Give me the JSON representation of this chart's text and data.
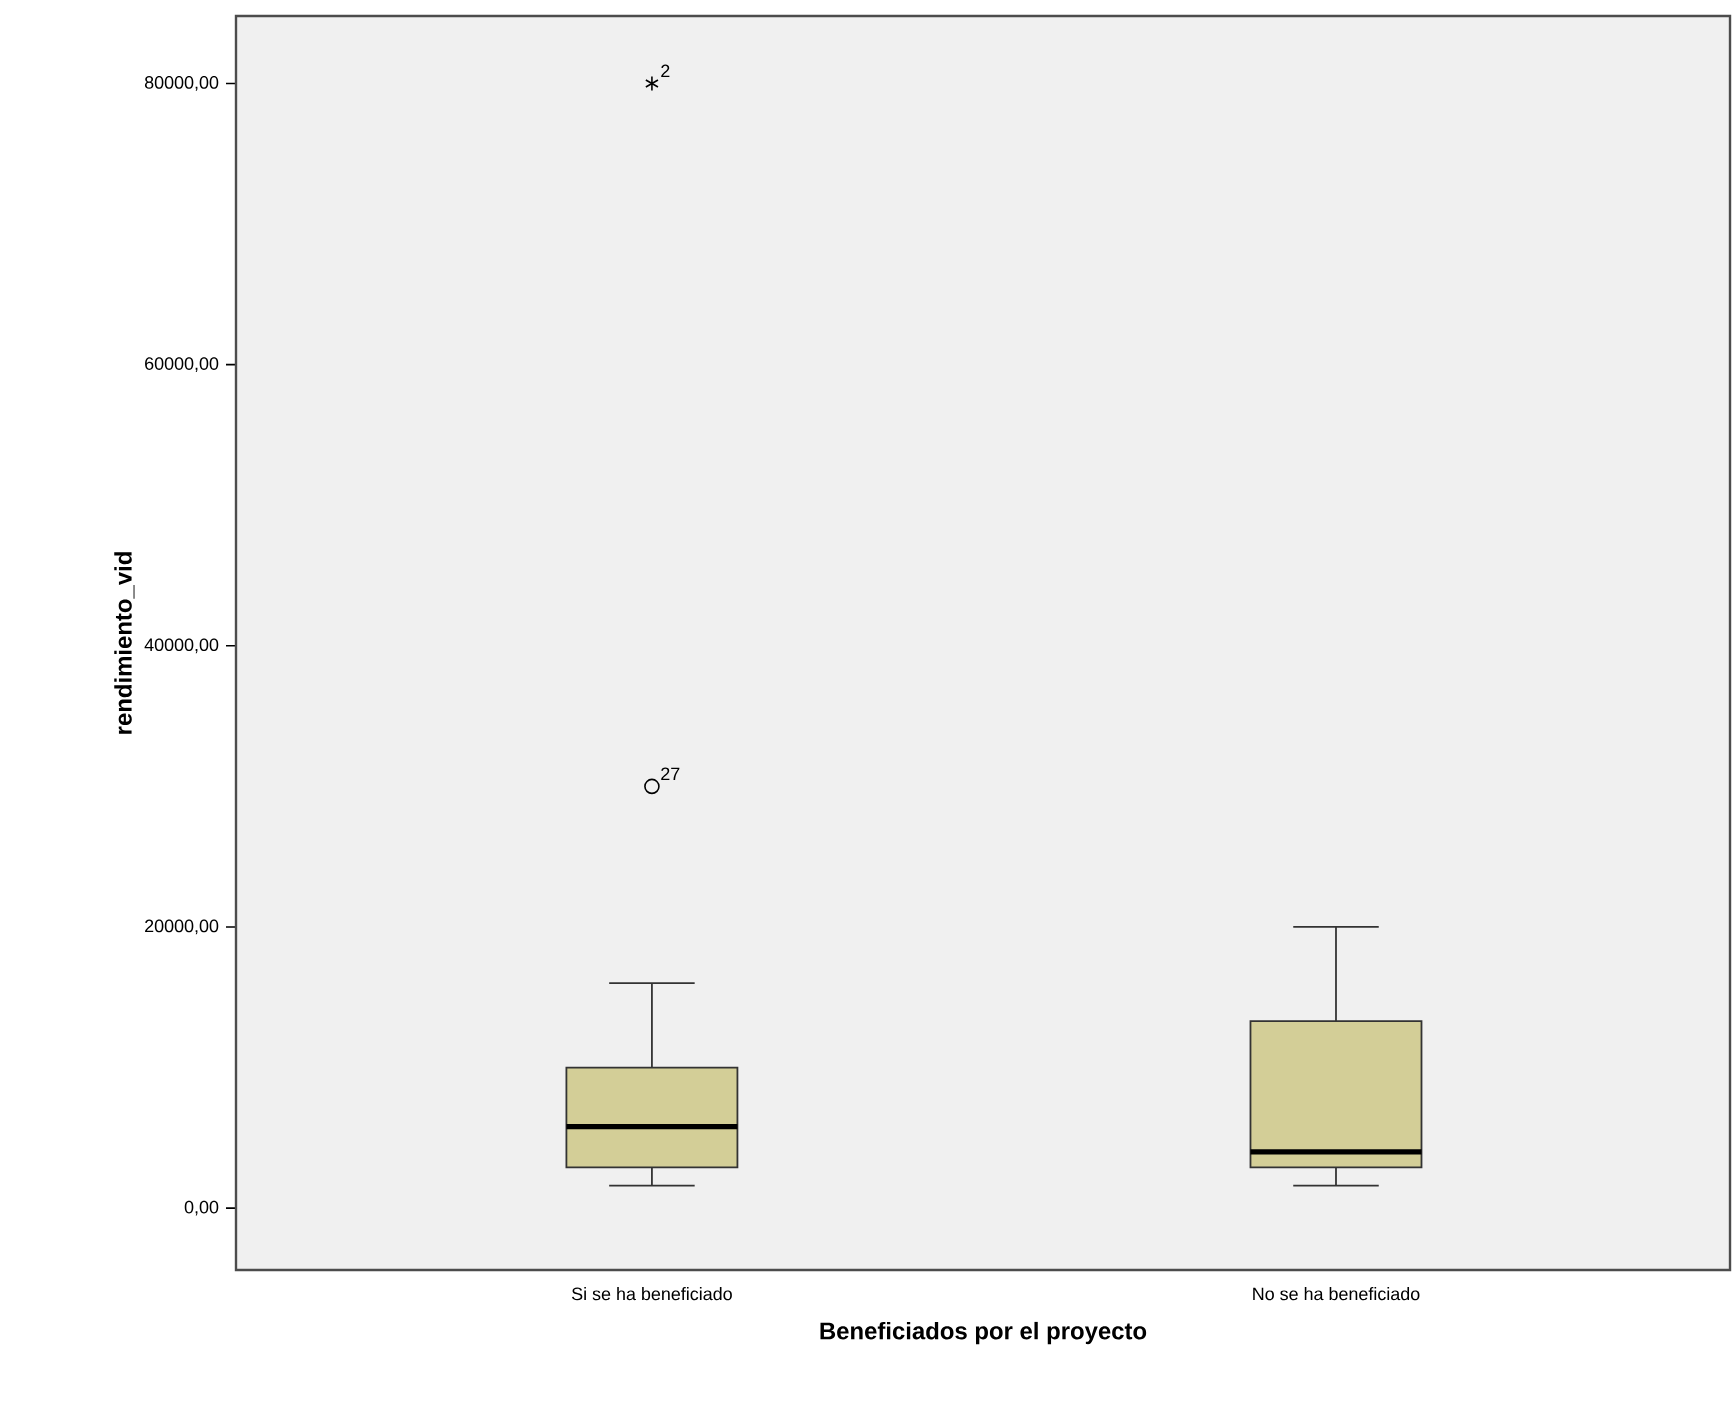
{
  "chart_data": {
    "type": "box",
    "xlabel": "Beneficiados por el proyecto",
    "ylabel": "rendimiento_vid",
    "categories": [
      "Si se ha beneficiado",
      "No se ha beneficiado"
    ],
    "color": "#d3ce97",
    "boxes": [
      {
        "low": 1600,
        "q1": 2900,
        "median": 5800,
        "q3": 10000,
        "high": 16000,
        "outliers": [
          30000,
          80000
        ]
      },
      {
        "low": 1600,
        "q1": 2900,
        "median": 4000,
        "q3": 13300,
        "high": 20000
      }
    ],
    "ylim": [
      -4400,
      84800
    ],
    "yticks": [
      {
        "value": 0,
        "label": "0,00"
      },
      {
        "value": 20000,
        "label": "20000,00"
      },
      {
        "value": 40000,
        "label": "40000,00"
      },
      {
        "value": 60000,
        "label": "60000,00"
      },
      {
        "value": 80000,
        "label": "80000,00"
      }
    ],
    "annotations": [
      "27",
      "2"
    ],
    "grid": false
  }
}
